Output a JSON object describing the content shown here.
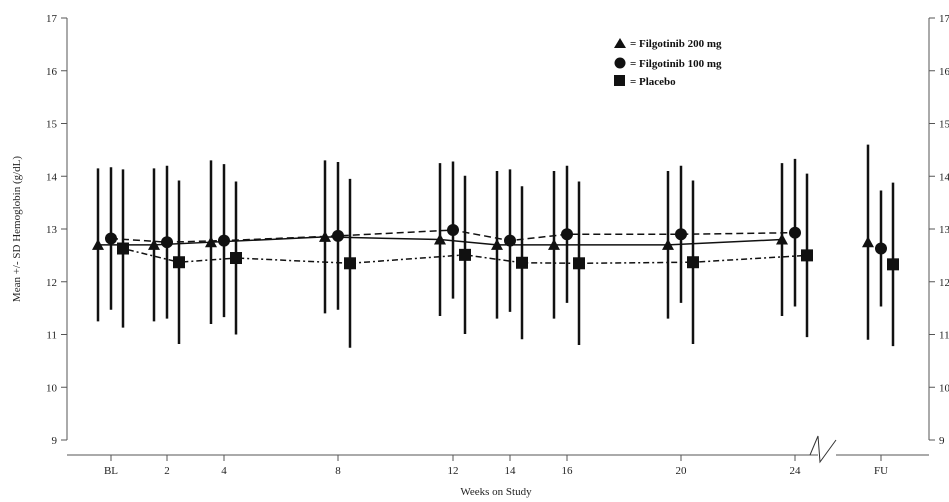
{
  "chart_data": {
    "type": "line",
    "xlabel": "Weeks on Study",
    "ylabel": "Mean +/- SD Hemoglobin (g/dL)",
    "ylim": [
      9,
      17
    ],
    "yticks": [
      9,
      10,
      11,
      12,
      13,
      14,
      15,
      16,
      17
    ],
    "categories": [
      "BL",
      "2",
      "4",
      "8",
      "12",
      "14",
      "16",
      "20",
      "24",
      "FU"
    ],
    "grid": false,
    "legend_position": "top-right",
    "series": [
      {
        "name": "Filgotinib 200 mg",
        "marker": "triangle",
        "line": "solid",
        "mean": [
          12.7,
          12.7,
          12.75,
          12.85,
          12.8,
          12.7,
          12.7,
          12.7,
          12.8,
          12.75
        ],
        "sd": [
          1.45,
          1.45,
          1.55,
          1.45,
          1.45,
          1.4,
          1.4,
          1.4,
          1.45,
          1.85
        ]
      },
      {
        "name": "Filgotinib 100 mg",
        "marker": "circle",
        "line": "dashed",
        "mean": [
          12.82,
          12.75,
          12.78,
          12.87,
          12.98,
          12.78,
          12.9,
          12.9,
          12.93,
          12.63
        ],
        "sd": [
          1.35,
          1.45,
          1.45,
          1.4,
          1.3,
          1.35,
          1.3,
          1.3,
          1.4,
          1.1
        ]
      },
      {
        "name": "Placebo",
        "marker": "square",
        "line": "dotdash",
        "mean": [
          12.63,
          12.37,
          12.45,
          12.35,
          12.51,
          12.36,
          12.35,
          12.37,
          12.5,
          12.33
        ],
        "sd": [
          1.5,
          1.55,
          1.45,
          1.6,
          1.5,
          1.45,
          1.55,
          1.55,
          1.55,
          1.55
        ]
      }
    ]
  },
  "legend": [
    {
      "label": "= Filgotinib 200 mg",
      "marker": "triangle"
    },
    {
      "label": "= Filgotinib 100 mg",
      "marker": "circle"
    },
    {
      "label": "= Placebo",
      "marker": "square"
    }
  ],
  "colors": {
    "ink": "#111111",
    "axis": "#555555"
  }
}
